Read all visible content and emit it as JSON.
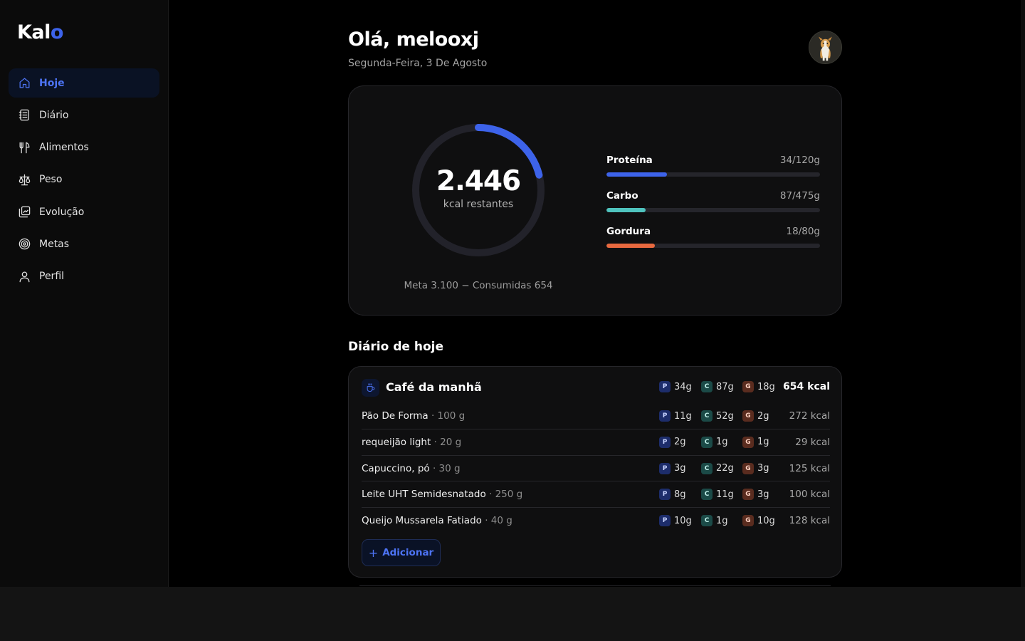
{
  "app": {
    "logo_text": "Kal",
    "logo_accent": "o",
    "accent_color": "#3d63ea"
  },
  "sidebar": {
    "items": [
      {
        "label": "Hoje",
        "icon": "home-icon",
        "active": true
      },
      {
        "label": "Diário",
        "icon": "notebook-icon",
        "active": false
      },
      {
        "label": "Alimentos",
        "icon": "fork-knife-icon",
        "active": false
      },
      {
        "label": "Peso",
        "icon": "scale-icon",
        "active": false
      },
      {
        "label": "Evolução",
        "icon": "chart-image-icon",
        "active": false
      },
      {
        "label": "Metas",
        "icon": "target-icon",
        "active": false
      },
      {
        "label": "Perfil",
        "icon": "user-icon",
        "active": false
      }
    ]
  },
  "header": {
    "greeting": "Olá, melooxj",
    "date": "Segunda-Feira, 3 De Agosto"
  },
  "summary": {
    "kcal_remaining": "2.446",
    "kcal_label": "kcal restantes",
    "meta_line": "Meta 3.100 − Consumidas 654",
    "consumed_fraction": 0.211,
    "macros": [
      {
        "name": "Proteína",
        "value": "34/120g",
        "fraction": 0.283,
        "color": "#3d63ea"
      },
      {
        "name": "Carbo",
        "value": "87/475g",
        "fraction": 0.183,
        "color": "#4fc3be"
      },
      {
        "name": "Gordura",
        "value": "18/80g",
        "fraction": 0.225,
        "color": "#e8693f"
      }
    ]
  },
  "diary": {
    "title": "Diário de hoje",
    "meals": [
      {
        "title": "Café da manhã",
        "p": "34g",
        "c": "87g",
        "g": "18g",
        "kcal": "654 kcal",
        "items": [
          {
            "name": "Pão De Forma",
            "qty": "· 100 g",
            "p": "11g",
            "c": "52g",
            "g": "2g",
            "kcal": "272 kcal"
          },
          {
            "name": "requeijão light",
            "qty": "· 20 g",
            "p": "2g",
            "c": "1g",
            "g": "1g",
            "kcal": "29 kcal"
          },
          {
            "name": "Capuccino, pó",
            "qty": "· 30 g",
            "p": "3g",
            "c": "22g",
            "g": "3g",
            "kcal": "125 kcal"
          },
          {
            "name": "Leite UHT Semidesnatado",
            "qty": "· 250 g",
            "p": "8g",
            "c": "11g",
            "g": "3g",
            "kcal": "100 kcal"
          },
          {
            "name": "Queijo Mussarela Fatiado",
            "qty": "· 40 g",
            "p": "10g",
            "c": "1g",
            "g": "10g",
            "kcal": "128 kcal"
          }
        ],
        "add_label": "Adicionar"
      }
    ]
  },
  "chips": {
    "p": "P",
    "c": "C",
    "g": "G"
  }
}
